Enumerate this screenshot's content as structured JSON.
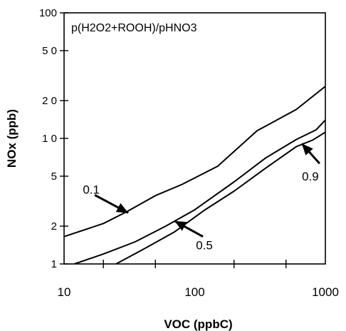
{
  "chart_data": {
    "type": "line",
    "title": "p(H2O2+ROOH)/pHNO3",
    "xlabel": "VOC (ppbC)",
    "ylabel": "NOx  (ppb)",
    "xscale": "log",
    "yscale": "log",
    "xlim": [
      10,
      1000
    ],
    "ylim": [
      1,
      100
    ],
    "grid": false,
    "x_ticks": [
      10,
      100,
      1000
    ],
    "x_tick_labels": [
      "10",
      "100",
      "1000"
    ],
    "y_ticks": [
      1,
      2,
      5,
      10,
      20,
      50,
      100
    ],
    "y_tick_labels": [
      "1",
      "2",
      "5",
      "1 0",
      "2 0",
      "5 0",
      "100"
    ],
    "series": [
      {
        "name": "0.1",
        "x": [
          10,
          20,
          30,
          50,
          80,
          150,
          300,
          600,
          1000
        ],
        "y": [
          1.65,
          2.1,
          2.6,
          3.5,
          4.3,
          6.0,
          11.5,
          17.0,
          26.0
        ]
      },
      {
        "name": "0.5",
        "x": [
          12,
          20,
          35,
          60,
          100,
          200,
          350,
          600,
          850,
          1000
        ],
        "y": [
          1.0,
          1.2,
          1.5,
          2.0,
          2.7,
          4.5,
          7.0,
          9.8,
          11.7,
          14.0
        ]
      },
      {
        "name": "0.9",
        "x": [
          25,
          40,
          70,
          120,
          200,
          350,
          600,
          800,
          1000
        ],
        "y": [
          1.0,
          1.3,
          1.8,
          2.7,
          3.8,
          5.8,
          8.6,
          9.7,
          11.2
        ]
      }
    ],
    "annotations": [
      {
        "label": "0.1",
        "series": "0.1",
        "point_x": 31,
        "point_y": 2.55
      },
      {
        "label": "0.5",
        "series": "0.5",
        "point_x": 70,
        "point_y": 2.2
      },
      {
        "label": "0.9",
        "series": "0.9",
        "point_x": 660,
        "point_y": 9.1
      }
    ]
  }
}
